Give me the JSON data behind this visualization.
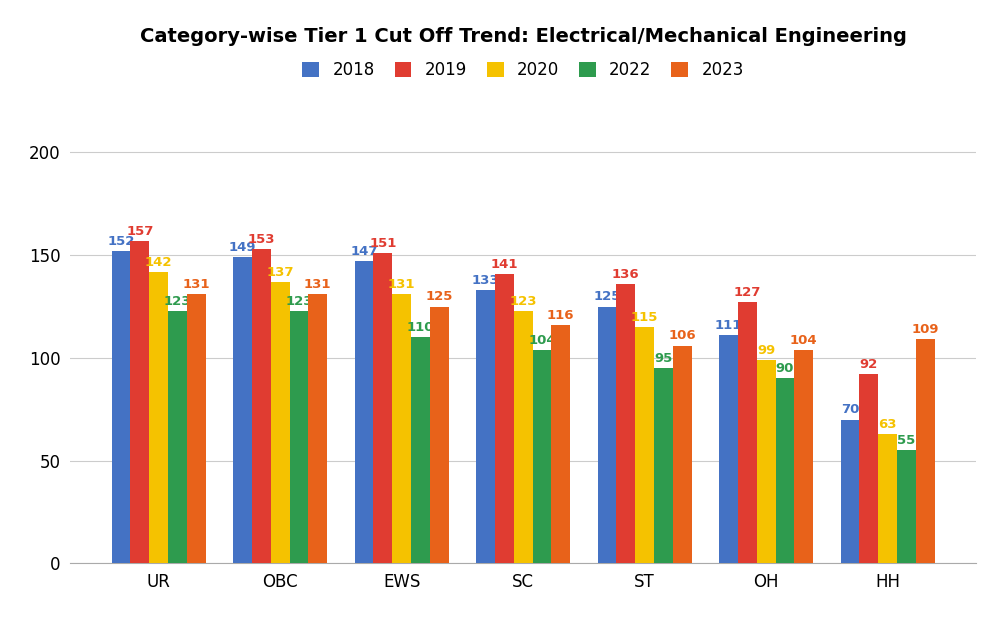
{
  "title": "Category-wise Tier 1 Cut Off Trend: Electrical/Mechanical Engineering",
  "categories": [
    "UR",
    "OBC",
    "EWS",
    "SC",
    "ST",
    "OH",
    "HH"
  ],
  "years": [
    "2018",
    "2019",
    "2020",
    "2022",
    "2023"
  ],
  "colors": [
    "#4472C4",
    "#E03C31",
    "#F5C200",
    "#2E9B4E",
    "#E8621A"
  ],
  "data": {
    "2018": [
      152,
      149,
      147,
      133,
      125,
      111,
      70
    ],
    "2019": [
      157,
      153,
      151,
      141,
      136,
      127,
      92
    ],
    "2020": [
      142,
      137,
      131,
      123,
      115,
      99,
      63
    ],
    "2022": [
      123,
      123,
      110,
      104,
      95,
      90,
      55
    ],
    "2023": [
      131,
      131,
      125,
      116,
      106,
      104,
      109
    ]
  },
  "ylim": [
    0,
    220
  ],
  "yticks": [
    0,
    50,
    100,
    150,
    200
  ],
  "ylabel": "",
  "xlabel": "",
  "legend_loc": "upper center",
  "legend_ncol": 5,
  "background_color": "#ffffff",
  "grid_color": "#cccccc",
  "bar_width": 0.155,
  "label_fontsize": 9.5,
  "title_fontsize": 14,
  "tick_fontsize": 12,
  "legend_fontsize": 12
}
